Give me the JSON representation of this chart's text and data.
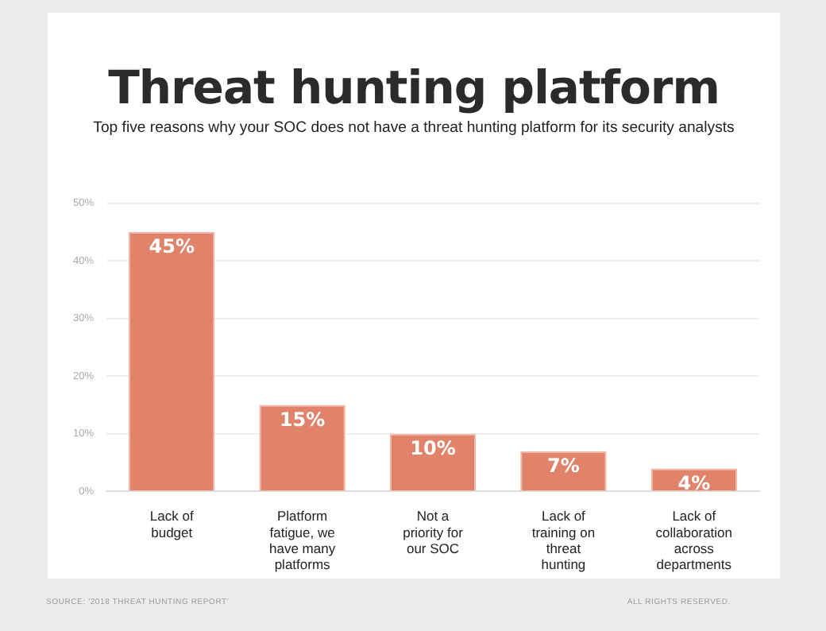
{
  "chart_data": {
    "type": "bar",
    "title": "Threat hunting platform",
    "subtitle": "Top five reasons why your SOC does not have a threat hunting platform for its security analysts",
    "categories": [
      "Lack of budget",
      "Platform fatigue, we have many platforms",
      "Not a priority for our SOC",
      "Lack of training on threat hunting",
      "Lack of collaboration across departments"
    ],
    "values": [
      45,
      15,
      10,
      7,
      4
    ],
    "color": "#e0836a",
    "ylim": [
      0,
      50
    ],
    "yticks": [
      {
        "value": 0,
        "label": "0%"
      },
      {
        "value": 10,
        "label": "10%"
      },
      {
        "value": 20,
        "label": "20%"
      },
      {
        "value": 30,
        "label": "30%"
      },
      {
        "value": 40,
        "label": "40%"
      },
      {
        "value": 50,
        "label": "50%"
      }
    ],
    "grid": "y",
    "value_labels": [
      "45%",
      "15%",
      "10%",
      "7%",
      "4%"
    ],
    "annotations": [
      "SOURCE: '2018 THREAT HUNTING REPORT'",
      "ALL RIGHTS RESERVED."
    ]
  }
}
